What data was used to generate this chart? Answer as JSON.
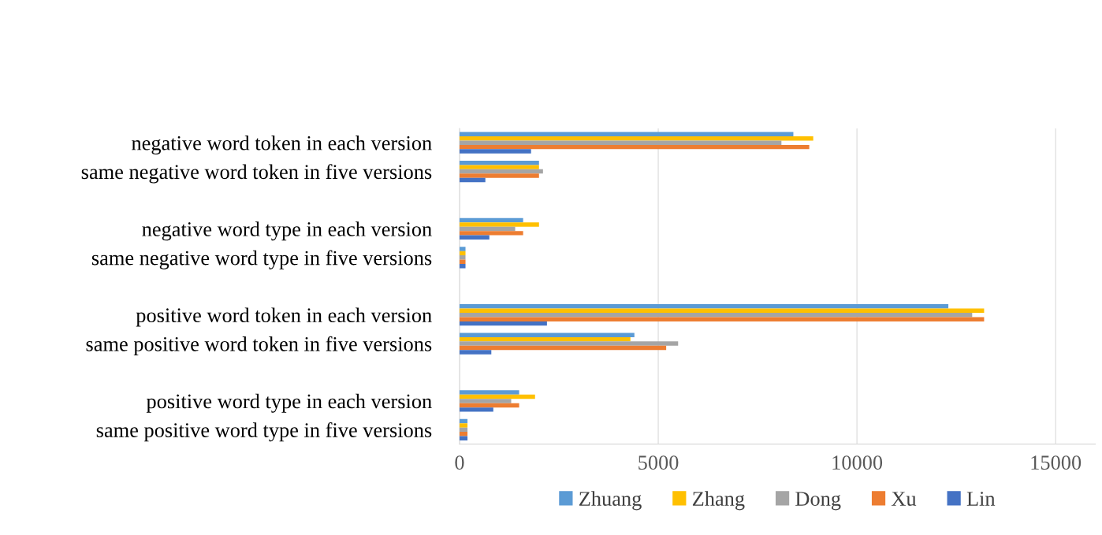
{
  "chart_data": {
    "type": "bar",
    "orientation": "horizontal",
    "categories": [
      "negative word token in each version",
      "same negative word token in five versions",
      null,
      "negative word type in each version",
      "same negative word type in five versions",
      null,
      "positive word token in each version",
      "same positive word token in five versions",
      null,
      "positive word type in each version",
      "same positive word type in five versions"
    ],
    "series": [
      {
        "name": "Zhuang",
        "color": "#5b9bd5",
        "values": [
          8400,
          2000,
          null,
          1600,
          150,
          null,
          12300,
          4400,
          null,
          1500,
          200
        ]
      },
      {
        "name": "Zhang",
        "color": "#ffc000",
        "values": [
          8900,
          2000,
          null,
          2000,
          150,
          null,
          13200,
          4300,
          null,
          1900,
          200
        ]
      },
      {
        "name": "Dong",
        "color": "#a5a5a5",
        "values": [
          8100,
          2100,
          null,
          1400,
          150,
          null,
          12900,
          5500,
          null,
          1300,
          200
        ]
      },
      {
        "name": "Xu",
        "color": "#ed7d31",
        "values": [
          8800,
          2000,
          null,
          1600,
          150,
          null,
          13200,
          5200,
          null,
          1500,
          200
        ]
      },
      {
        "name": "Lin",
        "color": "#4472c4",
        "values": [
          1800,
          650,
          null,
          750,
          150,
          null,
          2200,
          800,
          null,
          850,
          200
        ]
      }
    ],
    "xlim": [
      0,
      16000
    ],
    "xticks": [
      0,
      5000,
      10000,
      15000
    ],
    "grid": "x",
    "legend": "bottom"
  }
}
